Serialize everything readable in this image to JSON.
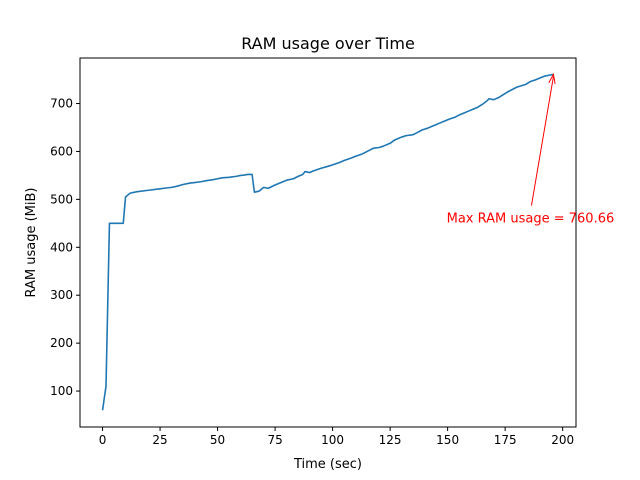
{
  "chart_data": {
    "type": "line",
    "title": "RAM usage over Time",
    "xlabel": "Time (sec)",
    "ylabel": "RAM usage (MiB)",
    "xlim": [
      -9.8,
      205.8
    ],
    "ylim": [
      25,
      795
    ],
    "xticks": [
      0,
      25,
      50,
      75,
      100,
      125,
      150,
      175,
      200
    ],
    "yticks": [
      100,
      200,
      300,
      400,
      500,
      600,
      700
    ],
    "grid": false,
    "line_color": "#1f77b4",
    "annotation": {
      "text": "Max RAM usage = 760.66",
      "color": "#ff0000",
      "point": [
        196,
        760.66
      ],
      "text_anchor": [
        186,
        462
      ]
    },
    "series": [
      {
        "x": [
          0,
          1.5,
          3,
          5,
          8,
          9,
          10,
          12,
          15,
          20,
          25,
          28,
          30,
          32,
          35,
          38,
          40,
          43,
          45,
          48,
          50,
          52,
          55,
          58,
          60,
          62,
          63,
          65,
          66,
          68,
          70,
          72,
          75,
          78,
          80,
          83,
          85,
          87,
          88,
          90,
          92,
          95,
          98,
          100,
          103,
          105,
          108,
          110,
          113,
          115,
          117,
          118,
          120,
          122,
          125,
          127,
          129,
          130,
          132,
          135,
          137,
          139,
          141,
          143,
          145,
          147,
          149,
          151,
          153,
          155,
          157,
          159,
          161,
          163,
          165,
          167,
          168,
          170,
          172,
          174,
          176,
          178,
          180,
          182,
          184,
          186,
          188,
          190,
          192,
          194,
          196
        ],
        "y": [
          60,
          110,
          450,
          450,
          450,
          450,
          505,
          513,
          516,
          519,
          522,
          524,
          525,
          527,
          531,
          534,
          535,
          537,
          539,
          541,
          543,
          545,
          546,
          548,
          550,
          551,
          552,
          552,
          515,
          517,
          525,
          523,
          530,
          536,
          540,
          543,
          548,
          552,
          558,
          556,
          560,
          565,
          569,
          572,
          577,
          581,
          586,
          590,
          595,
          600,
          605,
          607,
          608,
          611,
          617,
          624,
          628,
          630,
          633,
          635,
          640,
          645,
          648,
          652,
          656,
          660,
          664,
          668,
          671,
          676,
          680,
          684,
          688,
          692,
          698,
          705,
          710,
          708,
          712,
          718,
          724,
          729,
          734,
          737,
          740,
          746,
          749,
          753,
          757,
          759,
          760.66
        ]
      }
    ]
  }
}
